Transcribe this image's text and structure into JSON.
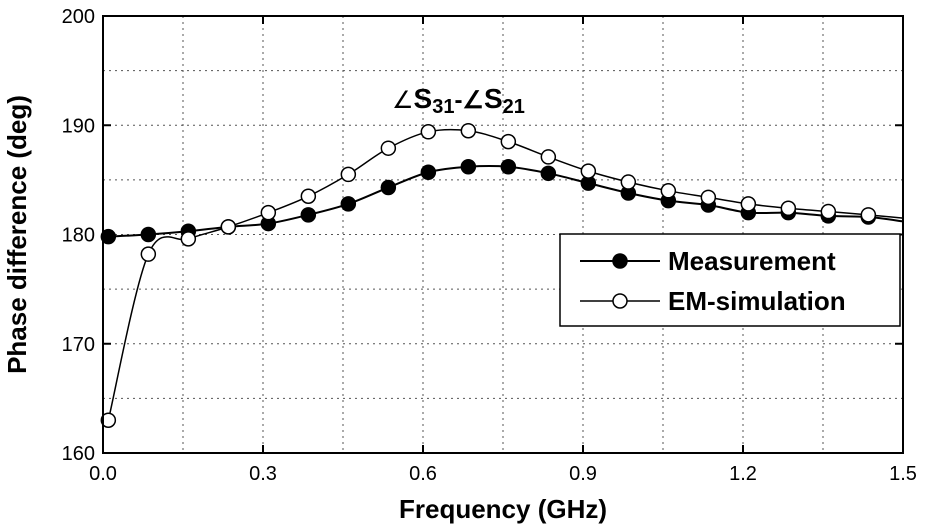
{
  "chart_data": {
    "type": "line",
    "xlabel": "Frequency (GHz)",
    "ylabel": "Phase difference (deg)",
    "xlim": [
      0.0,
      1.5
    ],
    "ylim": [
      160,
      200
    ],
    "xticks": [
      "0.0",
      "0.3",
      "0.6",
      "0.9",
      "1.2",
      "1.5"
    ],
    "xtick_values": [
      0.0,
      0.3,
      0.6,
      0.9,
      1.2,
      1.5
    ],
    "yticks": [
      "160",
      "170",
      "180",
      "190",
      "200"
    ],
    "ytick_values": [
      160,
      170,
      180,
      190,
      200
    ],
    "grid": true,
    "legend_position": "right",
    "annotation": {
      "prefix1": "∠",
      "text1": "S",
      "sub1": "31",
      "separator": "-∠",
      "text2": "S",
      "sub2": "21"
    },
    "series": [
      {
        "name": "Measurement",
        "marker": "filled-circle",
        "x": [
          0.01,
          0.085,
          0.16,
          0.235,
          0.31,
          0.385,
          0.46,
          0.535,
          0.61,
          0.685,
          0.76,
          0.835,
          0.91,
          0.985,
          1.06,
          1.135,
          1.21,
          1.285,
          1.36,
          1.435,
          1.5
        ],
        "values": [
          179.8,
          180.0,
          180.3,
          180.7,
          181.0,
          181.8,
          182.8,
          184.3,
          185.7,
          186.2,
          186.2,
          185.6,
          184.7,
          183.8,
          183.1,
          182.7,
          182.0,
          182.0,
          181.7,
          181.6,
          181.2
        ]
      },
      {
        "name": "EM-simulation",
        "marker": "open-circle",
        "x": [
          0.01,
          0.085,
          0.16,
          0.235,
          0.31,
          0.385,
          0.46,
          0.535,
          0.61,
          0.685,
          0.76,
          0.835,
          0.91,
          0.985,
          1.06,
          1.135,
          1.21,
          1.285,
          1.36,
          1.435,
          1.5
        ],
        "values": [
          163.0,
          178.2,
          179.6,
          180.7,
          182.0,
          183.5,
          185.5,
          187.9,
          189.4,
          189.5,
          188.5,
          187.1,
          185.8,
          184.8,
          184.0,
          183.4,
          182.8,
          182.4,
          182.1,
          181.8,
          181.5
        ]
      }
    ]
  }
}
